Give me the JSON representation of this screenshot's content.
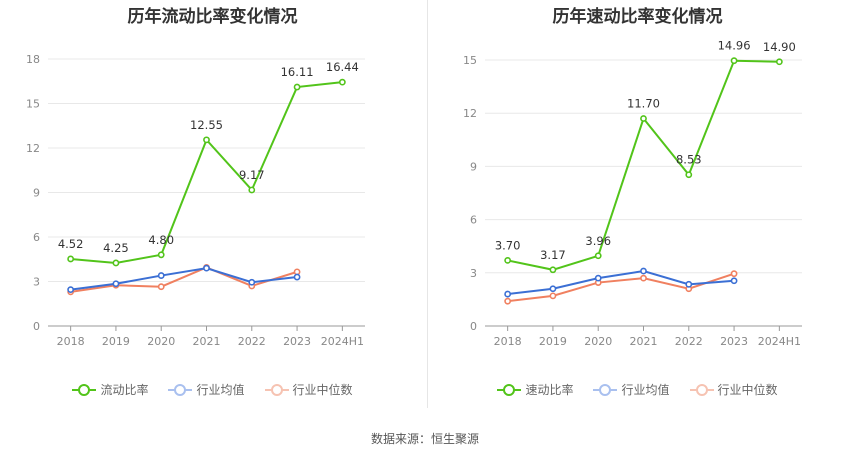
{
  "source": "数据来源：恒生聚源",
  "colors": {
    "main": "#52c41a",
    "avg": "#3b6fd4",
    "median": "#f08060",
    "grid": "#e8e8e8",
    "axis": "#999999"
  },
  "chart_data": [
    {
      "type": "line",
      "title": "历年流动比率变化情况",
      "categories": [
        "2018",
        "2019",
        "2020",
        "2021",
        "2022",
        "2023",
        "2024H1"
      ],
      "ylim": [
        0,
        18
      ],
      "yticks": [
        0,
        3,
        6,
        9,
        12,
        15,
        18
      ],
      "grid": true,
      "legend_position": "bottom",
      "series": [
        {
          "name": "流动比率",
          "color": "#52c41a",
          "labeled": true,
          "values": [
            4.52,
            4.25,
            4.8,
            12.55,
            9.17,
            16.11,
            16.44
          ],
          "labels": [
            "4.52",
            "4.25",
            "4.80",
            "12.55",
            "9.17",
            "16.11",
            "16.44"
          ]
        },
        {
          "name": "行业均值",
          "color": "#3b6fd4",
          "labeled": false,
          "values": [
            2.45,
            2.85,
            3.4,
            3.9,
            2.95,
            3.3,
            null
          ]
        },
        {
          "name": "行业中位数",
          "color": "#f08060",
          "labeled": false,
          "values": [
            2.3,
            2.75,
            2.65,
            3.95,
            2.7,
            3.65,
            null
          ]
        }
      ]
    },
    {
      "type": "line",
      "title": "历年速动比率变化情况",
      "categories": [
        "2018",
        "2019",
        "2020",
        "2021",
        "2022",
        "2023",
        "2024H1"
      ],
      "ylim": [
        0,
        15
      ],
      "yticks": [
        0,
        3,
        6,
        9,
        12,
        15
      ],
      "grid": true,
      "legend_position": "bottom",
      "series": [
        {
          "name": "速动比率",
          "color": "#52c41a",
          "labeled": true,
          "values": [
            3.7,
            3.17,
            3.96,
            11.7,
            8.53,
            14.96,
            14.9
          ],
          "labels": [
            "3.70",
            "3.17",
            "3.96",
            "11.70",
            "8.53",
            "14.96",
            "14.90"
          ]
        },
        {
          "name": "行业均值",
          "color": "#3b6fd4",
          "labeled": false,
          "values": [
            1.8,
            2.1,
            2.7,
            3.1,
            2.35,
            2.55,
            null
          ]
        },
        {
          "name": "行业中位数",
          "color": "#f08060",
          "labeled": false,
          "values": [
            1.4,
            1.7,
            2.45,
            2.7,
            2.1,
            2.95,
            null
          ]
        }
      ]
    }
  ]
}
